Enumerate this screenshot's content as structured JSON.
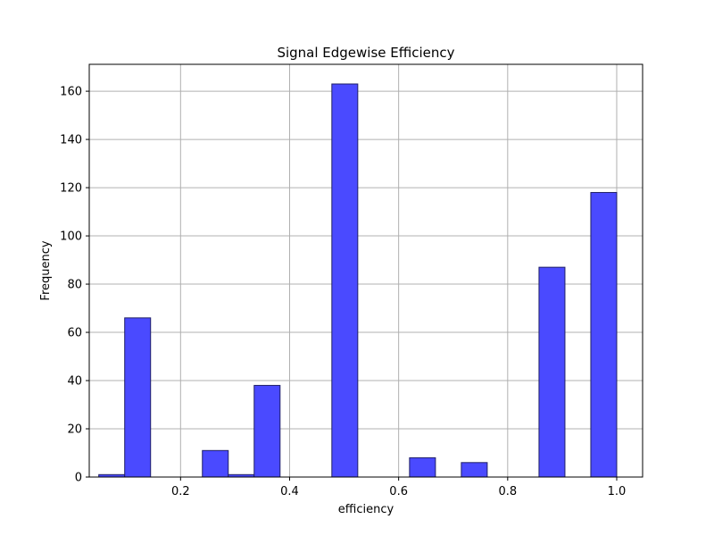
{
  "chart_data": {
    "type": "bar",
    "title": "Signal Edgewise Efficiency",
    "xlabel": "efficiency",
    "ylabel": "Frequency",
    "xlim": [
      0.0325,
      1.0475
    ],
    "ylim": [
      0,
      171.15
    ],
    "grid": true,
    "bar_color": "#4a4aff",
    "bar_edge_color": "#1f1f66",
    "x_ticks": [
      {
        "value": 0.2,
        "label": "0.2"
      },
      {
        "value": 0.4,
        "label": "0.4"
      },
      {
        "value": 0.6,
        "label": "0.6"
      },
      {
        "value": 0.8,
        "label": "0.8"
      },
      {
        "value": 1.0,
        "label": "1.0"
      }
    ],
    "y_ticks": [
      {
        "value": 0,
        "label": "0"
      },
      {
        "value": 20,
        "label": "20"
      },
      {
        "value": 40,
        "label": "40"
      },
      {
        "value": 60,
        "label": "60"
      },
      {
        "value": 80,
        "label": "80"
      },
      {
        "value": 100,
        "label": "100"
      },
      {
        "value": 120,
        "label": "120"
      },
      {
        "value": 140,
        "label": "140"
      },
      {
        "value": 160,
        "label": "160"
      }
    ],
    "bins": [
      {
        "x0": 0.05,
        "x1": 0.0975,
        "count": 1
      },
      {
        "x0": 0.0975,
        "x1": 0.145,
        "count": 66
      },
      {
        "x0": 0.145,
        "x1": 0.1925,
        "count": 0
      },
      {
        "x0": 0.1925,
        "x1": 0.24,
        "count": 0
      },
      {
        "x0": 0.24,
        "x1": 0.2875,
        "count": 11
      },
      {
        "x0": 0.2875,
        "x1": 0.335,
        "count": 1
      },
      {
        "x0": 0.335,
        "x1": 0.3825,
        "count": 38
      },
      {
        "x0": 0.3825,
        "x1": 0.43,
        "count": 0
      },
      {
        "x0": 0.43,
        "x1": 0.4775,
        "count": 0
      },
      {
        "x0": 0.4775,
        "x1": 0.525,
        "count": 163
      },
      {
        "x0": 0.525,
        "x1": 0.5725,
        "count": 0
      },
      {
        "x0": 0.5725,
        "x1": 0.62,
        "count": 0
      },
      {
        "x0": 0.62,
        "x1": 0.6675,
        "count": 8
      },
      {
        "x0": 0.6675,
        "x1": 0.715,
        "count": 0
      },
      {
        "x0": 0.715,
        "x1": 0.7625,
        "count": 6
      },
      {
        "x0": 0.7625,
        "x1": 0.81,
        "count": 0
      },
      {
        "x0": 0.81,
        "x1": 0.8575,
        "count": 0
      },
      {
        "x0": 0.8575,
        "x1": 0.905,
        "count": 87
      },
      {
        "x0": 0.905,
        "x1": 0.9525,
        "count": 0
      },
      {
        "x0": 0.9525,
        "x1": 1.0,
        "count": 118
      }
    ]
  }
}
